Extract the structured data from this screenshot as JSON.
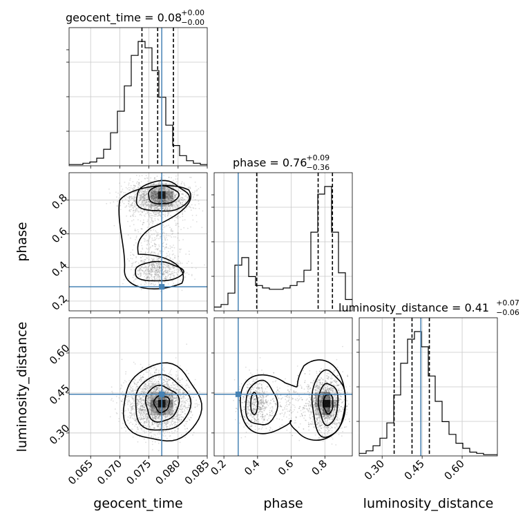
{
  "chart_data": {
    "type": "corner",
    "parameters": [
      "geocent_time",
      "phase",
      "luminosity_distance"
    ],
    "truths": {
      "geocent_time": 0.0772,
      "phase": 0.285,
      "luminosity_distance": 0.445
    },
    "truth_color": "#4682b4",
    "titles": [
      {
        "label": "geocent_time = 0.08",
        "sup": "+0.00",
        "sub": "−0.00"
      },
      {
        "label": "phase = 0.76",
        "sup": "+0.09",
        "sub": "−0.36"
      },
      {
        "label": "luminosity_distance = 0.41",
        "sup": "+0.07",
        "sub": "−0.06"
      }
    ],
    "axis_labels": {
      "x": [
        "geocent_time",
        "phase",
        "luminosity_distance"
      ],
      "y": [
        "phase",
        "luminosity_distance"
      ]
    },
    "ranges": {
      "geocent_time": [
        0.0613,
        0.085
      ],
      "phase": [
        0.142,
        0.963
      ],
      "luminosity_distance": [
        0.214,
        0.732
      ]
    },
    "ticks": {
      "geocent_time": [
        "0.065",
        "0.070",
        "0.075",
        "0.080",
        "0.085"
      ],
      "phase": [
        "0.2",
        "0.4",
        "0.6",
        "0.8"
      ],
      "luminosity_distance": [
        "0.30",
        "0.45",
        "0.60"
      ]
    },
    "quantiles": {
      "geocent_time": [
        0.0738,
        0.0765,
        0.0792
      ],
      "phase": [
        0.395,
        0.76,
        0.845
      ],
      "luminosity_distance": [
        0.345,
        0.412,
        0.477
      ]
    },
    "histograms": {
      "geocent_time": [
        0.01,
        0.01,
        0.02,
        0.03,
        0.06,
        0.13,
        0.26,
        0.43,
        0.63,
        0.87,
        0.98,
        0.93,
        0.75,
        0.54,
        0.32,
        0.16,
        0.08,
        0.04,
        0.02,
        0.01
      ],
      "phase": [
        0.03,
        0.05,
        0.14,
        0.36,
        0.42,
        0.27,
        0.2,
        0.18,
        0.17,
        0.17,
        0.18,
        0.2,
        0.23,
        0.32,
        0.62,
        0.92,
        0.98,
        0.62,
        0.3,
        0.09
      ],
      "luminosity_distance": [
        0.02,
        0.04,
        0.08,
        0.14,
        0.26,
        0.48,
        0.73,
        0.92,
        0.98,
        0.86,
        0.63,
        0.43,
        0.27,
        0.17,
        0.1,
        0.06,
        0.03,
        0.02,
        0.01,
        0.01
      ]
    },
    "grid": true
  }
}
